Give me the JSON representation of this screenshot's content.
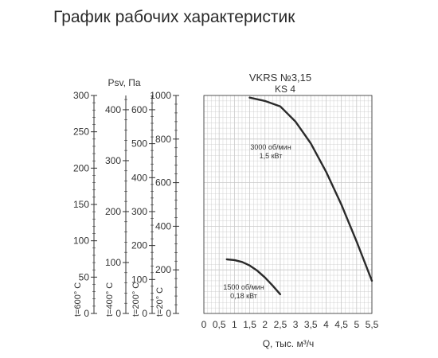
{
  "page": {
    "title": "График рабочих характеристик"
  },
  "chart_data": {
    "type": "line",
    "title": "VKRS №3,15",
    "subtitle": "KS 4",
    "xlabel": "Q, тыс. м³/ч",
    "ylabel": "Psv, Па",
    "xlim": [
      0,
      5.5
    ],
    "ylim": [
      0,
      1000
    ],
    "x_ticks": [
      "0",
      "0,5",
      "1",
      "1,5",
      "2",
      "2,5",
      "3",
      "3,5",
      "4",
      "4,5",
      "5",
      "5,5"
    ],
    "x_tick_values": [
      0,
      0.5,
      1,
      1.5,
      2,
      2.5,
      3,
      3.5,
      4,
      4.5,
      5,
      5.5
    ],
    "grid": true,
    "extra_axes": [
      {
        "name": "t=600° C",
        "max": 300,
        "ticks": [
          "0",
          "50",
          "100",
          "150",
          "200",
          "250",
          "300"
        ],
        "tick_values": [
          0,
          50,
          100,
          150,
          200,
          250,
          300
        ]
      },
      {
        "name": "t=400° C",
        "max": 428,
        "ticks": [
          "0",
          "100",
          "200",
          "300",
          "400"
        ],
        "tick_values": [
          0,
          100,
          200,
          300,
          400
        ]
      },
      {
        "name": "t=200° C",
        "max": 642,
        "ticks": [
          "0",
          "100",
          "200",
          "300",
          "400",
          "500",
          "600"
        ],
        "tick_values": [
          0,
          100,
          200,
          300,
          400,
          500,
          600
        ]
      },
      {
        "name": "t=20° C",
        "max": 1000,
        "ticks": [
          "0",
          "200",
          "400",
          "600",
          "800",
          "1000"
        ],
        "tick_values": [
          0,
          200,
          400,
          600,
          800,
          1000
        ]
      }
    ],
    "series": [
      {
        "speed": "3000 об/мин",
        "power": "1,5 кВт",
        "x": [
          1.5,
          2.0,
          2.5,
          3.0,
          3.5,
          4.0,
          4.5,
          5.0,
          5.5
        ],
        "y": [
          990,
          975,
          950,
          880,
          780,
          650,
          500,
          330,
          150
        ]
      },
      {
        "speed": "1500 об/мин",
        "power": "0,18 кВт",
        "x": [
          0.75,
          1.0,
          1.25,
          1.5,
          1.75,
          2.0,
          2.25,
          2.5
        ],
        "y": [
          248,
          245,
          236,
          220,
          196,
          165,
          128,
          88
        ]
      }
    ]
  },
  "colors": {
    "curve": "#2a2a2a",
    "grid": "#c8c8c8",
    "axis": "#333333"
  }
}
